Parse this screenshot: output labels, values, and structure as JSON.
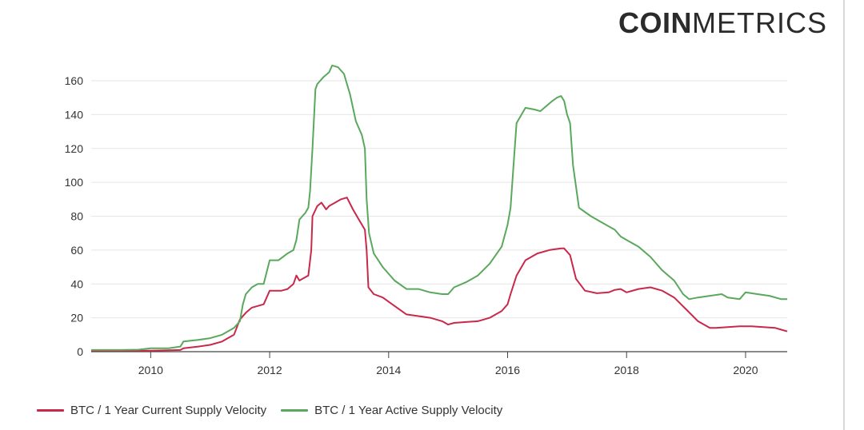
{
  "brand": {
    "bold": "COIN",
    "light": "METRICS"
  },
  "chart_data": {
    "type": "line",
    "title": "",
    "xlabel": "",
    "ylabel": "",
    "xlim": [
      2009.0,
      2020.7
    ],
    "ylim": [
      0,
      170
    ],
    "x_ticks": [
      2010,
      2012,
      2014,
      2016,
      2018,
      2020
    ],
    "y_ticks": [
      0,
      20,
      40,
      60,
      80,
      100,
      120,
      140,
      160
    ],
    "grid": "horizontal",
    "legend": "bottom-left",
    "series": [
      {
        "name": "BTC / 1 Year Current Supply Velocity",
        "color": "#c9284b",
        "x": [
          2009.0,
          2009.5,
          2010.0,
          2010.3,
          2010.5,
          2010.55,
          2010.8,
          2011.0,
          2011.2,
          2011.4,
          2011.5,
          2011.6,
          2011.7,
          2011.8,
          2011.9,
          2012.0,
          2012.2,
          2012.3,
          2012.4,
          2012.45,
          2012.5,
          2012.55,
          2012.65,
          2012.7,
          2012.72,
          2012.8,
          2012.87,
          2012.95,
          2013.0,
          2013.1,
          2013.2,
          2013.3,
          2013.4,
          2013.5,
          2013.6,
          2013.63,
          2013.66,
          2013.75,
          2013.9,
          2014.1,
          2014.3,
          2014.5,
          2014.7,
          2014.9,
          2015.0,
          2015.1,
          2015.3,
          2015.5,
          2015.7,
          2015.9,
          2016.0,
          2016.05,
          2016.15,
          2016.3,
          2016.5,
          2016.7,
          2016.8,
          2016.9,
          2016.95,
          2017.0,
          2017.05,
          2017.15,
          2017.3,
          2017.5,
          2017.7,
          2017.8,
          2017.9,
          2018.0,
          2018.2,
          2018.4,
          2018.6,
          2018.8,
          2019.0,
          2019.2,
          2019.4,
          2019.5,
          2019.7,
          2019.9,
          2020.1,
          2020.3,
          2020.5,
          2020.6,
          2020.7
        ],
        "values": [
          0.5,
          0.5,
          0.6,
          0.8,
          1.0,
          2.0,
          3.0,
          4.0,
          6.0,
          10.0,
          19.0,
          23.0,
          26.0,
          27.0,
          28.0,
          36.0,
          36.0,
          37.0,
          40.0,
          45.0,
          42.0,
          43.0,
          45.0,
          60.0,
          80.0,
          86.0,
          88.0,
          84.0,
          86.0,
          88.0,
          90.0,
          91.0,
          84.0,
          78.0,
          72.0,
          60.0,
          38.0,
          34.0,
          32.0,
          27.0,
          22.0,
          21.0,
          20.0,
          18.0,
          16.0,
          17.0,
          17.5,
          18.0,
          20.0,
          24.0,
          28.0,
          34.0,
          45.0,
          54.0,
          58.0,
          60.0,
          60.5,
          61.0,
          61.0,
          59.0,
          57.0,
          43.0,
          36.0,
          34.5,
          35.0,
          36.5,
          37.0,
          35.0,
          37.0,
          38.0,
          36.0,
          32.0,
          25.0,
          18.0,
          14.0,
          14.0,
          14.5,
          15.0,
          15.0,
          14.5,
          14.0,
          13.0,
          12.0
        ]
      },
      {
        "name": "BTC / 1 Year Active Supply Velocity",
        "color": "#5aa85c",
        "x": [
          2009.0,
          2009.5,
          2009.8,
          2010.0,
          2010.3,
          2010.5,
          2010.55,
          2010.8,
          2011.0,
          2011.2,
          2011.4,
          2011.5,
          2011.55,
          2011.6,
          2011.7,
          2011.8,
          2011.9,
          2012.0,
          2012.15,
          2012.3,
          2012.4,
          2012.45,
          2012.5,
          2012.55,
          2012.6,
          2012.65,
          2012.68,
          2012.72,
          2012.77,
          2012.8,
          2012.85,
          2012.9,
          2013.0,
          2013.05,
          2013.15,
          2013.25,
          2013.35,
          2013.45,
          2013.55,
          2013.6,
          2013.63,
          2013.67,
          2013.75,
          2013.9,
          2014.1,
          2014.3,
          2014.5,
          2014.7,
          2014.9,
          2015.0,
          2015.1,
          2015.3,
          2015.5,
          2015.7,
          2015.9,
          2016.0,
          2016.05,
          2016.1,
          2016.15,
          2016.3,
          2016.45,
          2016.55,
          2016.65,
          2016.75,
          2016.83,
          2016.9,
          2016.95,
          2017.0,
          2017.05,
          2017.1,
          2017.2,
          2017.4,
          2017.6,
          2017.8,
          2017.9,
          2018.0,
          2018.2,
          2018.4,
          2018.6,
          2018.8,
          2018.95,
          2019.05,
          2019.2,
          2019.4,
          2019.6,
          2019.7,
          2019.9,
          2020.0,
          2020.2,
          2020.4,
          2020.6,
          2020.7
        ],
        "values": [
          1.0,
          1.0,
          1.2,
          2.0,
          2.0,
          3.0,
          6.0,
          7.0,
          8.0,
          10.0,
          14.0,
          18.0,
          28.0,
          34.0,
          38.0,
          40.0,
          40.0,
          54.0,
          54.0,
          58.0,
          60.0,
          66.0,
          78.0,
          80.0,
          82.0,
          85.0,
          95.0,
          120.0,
          155.0,
          158.0,
          160.0,
          162.0,
          165.0,
          169.0,
          168.0,
          164.0,
          152.0,
          136.0,
          128.0,
          120.0,
          90.0,
          70.0,
          58.0,
          50.0,
          42.0,
          37.0,
          37.0,
          35.0,
          34.0,
          34.0,
          38.0,
          41.0,
          45.0,
          52.0,
          62.0,
          75.0,
          85.0,
          110.0,
          135.0,
          144.0,
          143.0,
          142.0,
          145.0,
          148.0,
          150.0,
          151.0,
          148.0,
          140.0,
          135.0,
          110.0,
          85.0,
          80.0,
          76.0,
          72.0,
          68.0,
          66.0,
          62.0,
          56.0,
          48.0,
          42.0,
          34.0,
          31.0,
          32.0,
          33.0,
          34.0,
          32.0,
          31.0,
          35.0,
          34.0,
          33.0,
          31.0,
          31.0
        ]
      }
    ]
  }
}
